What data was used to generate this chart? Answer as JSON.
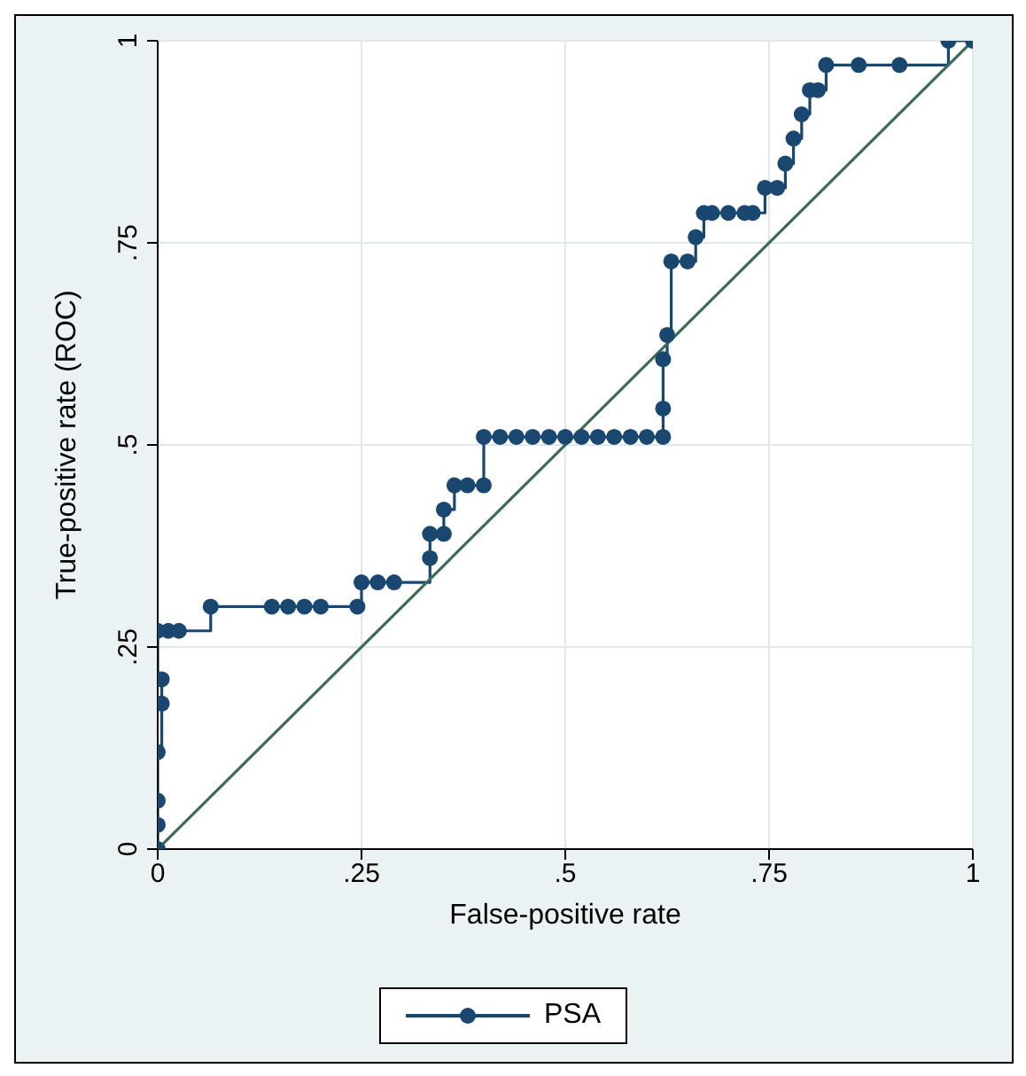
{
  "chart_data": {
    "type": "step",
    "xlabel": "False-positive rate",
    "ylabel": "True-positive rate (ROC)",
    "xlim": [
      0,
      1
    ],
    "ylim": [
      0,
      1
    ],
    "xticks": [
      0,
      {
        "value": 0.25,
        "label": ".25"
      },
      {
        "value": 0.5,
        "label": ".5"
      },
      {
        "value": 0.75,
        "label": ".75"
      },
      1
    ],
    "yticks": [
      0,
      {
        "value": 0.25,
        "label": ".25"
      },
      {
        "value": 0.5,
        "label": ".5"
      },
      {
        "value": 0.75,
        "label": ".75"
      },
      1
    ],
    "grid": true,
    "legend": "bottom",
    "marker": "circle",
    "line_style": "solid",
    "series": [
      {
        "name": "PSA",
        "color": "#1a476f",
        "x": [
          0,
          0,
          0,
          0,
          0.005,
          0.005,
          0,
          0.013,
          0.026,
          0.065,
          0.14,
          0.16,
          0.18,
          0.2,
          0.245,
          0.25,
          0.27,
          0.29,
          0.334,
          0.334,
          0.351,
          0.351,
          0.364,
          0.38,
          0.4,
          0.4,
          0.42,
          0.44,
          0.46,
          0.48,
          0.5,
          0.52,
          0.54,
          0.56,
          0.58,
          0.6,
          0.62,
          0.62,
          0.62,
          0.625,
          0.63,
          0.65,
          0.66,
          0.67,
          0.68,
          0.7,
          0.72,
          0.73,
          0.745,
          0.76,
          0.77,
          0.78,
          0.79,
          0.8,
          0.81,
          0.82,
          0.86,
          0.91,
          0.97,
          1
        ],
        "values": [
          0,
          0.03,
          0.06,
          0.12,
          0.18,
          0.21,
          0.27,
          0.27,
          0.27,
          0.3,
          0.3,
          0.3,
          0.3,
          0.3,
          0.3,
          0.33,
          0.33,
          0.33,
          0.36,
          0.39,
          0.39,
          0.42,
          0.45,
          0.45,
          0.45,
          0.51,
          0.51,
          0.51,
          0.51,
          0.51,
          0.51,
          0.51,
          0.51,
          0.51,
          0.51,
          0.51,
          0.51,
          0.545,
          0.606,
          0.636,
          0.727,
          0.727,
          0.757,
          0.787,
          0.787,
          0.787,
          0.787,
          0.787,
          0.818,
          0.818,
          0.848,
          0.879,
          0.909,
          0.939,
          0.939,
          0.97,
          0.97,
          0.97,
          1,
          1
        ]
      },
      {
        "type": "line",
        "color": "#3d6b55",
        "marker": "none",
        "x": [
          0,
          1
        ],
        "values": [
          0,
          1
        ]
      }
    ]
  }
}
